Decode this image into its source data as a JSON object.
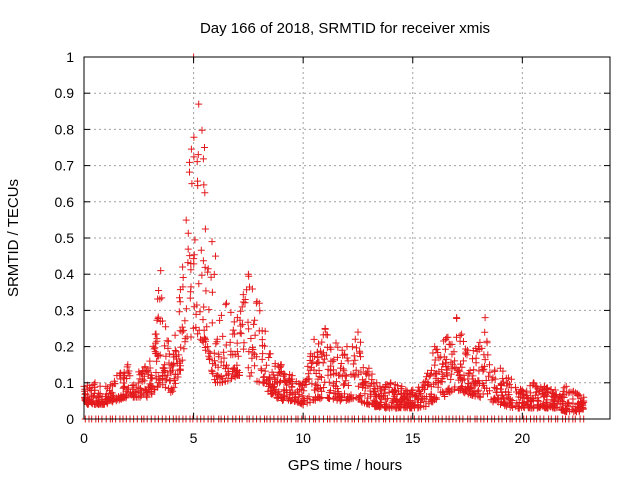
{
  "chart_data": {
    "type": "scatter",
    "title": "Day 166 of 2018, SRMTID for receiver xmis",
    "xlabel": "GPS time / hours",
    "ylabel": "SRMTID / TECUs",
    "xlim": [
      0,
      24
    ],
    "ylim": [
      0,
      1
    ],
    "xticks": [
      0,
      5,
      10,
      15,
      20
    ],
    "xtick_labels": [
      "0",
      "5",
      "10",
      "15",
      "20"
    ],
    "yticks": [
      0,
      0.1,
      0.2,
      0.3,
      0.4,
      0.5,
      0.6,
      0.7,
      0.8,
      0.9,
      1
    ],
    "ytick_labels": [
      "0",
      "0.1",
      "0.2",
      "0.3",
      "0.4",
      "0.5",
      "0.6",
      "0.7",
      "0.8",
      "0.9",
      "1"
    ],
    "grid": true,
    "marker": "+",
    "series": [
      {
        "name": "SRMTID",
        "color": "#e41a1c",
        "envelope": [
          [
            0.0,
            0.04,
            0.09
          ],
          [
            0.5,
            0.04,
            0.1
          ],
          [
            1.0,
            0.04,
            0.09
          ],
          [
            1.5,
            0.05,
            0.12
          ],
          [
            2.0,
            0.06,
            0.15
          ],
          [
            2.5,
            0.06,
            0.13
          ],
          [
            3.0,
            0.06,
            0.16
          ],
          [
            3.5,
            0.1,
            0.41
          ],
          [
            4.0,
            0.07,
            0.15
          ],
          [
            4.5,
            0.15,
            0.42
          ],
          [
            5.0,
            0.25,
            1.0
          ],
          [
            5.5,
            0.2,
            0.75
          ],
          [
            6.0,
            0.1,
            0.45
          ],
          [
            6.5,
            0.1,
            0.32
          ],
          [
            7.0,
            0.12,
            0.28
          ],
          [
            7.5,
            0.12,
            0.4
          ],
          [
            8.0,
            0.1,
            0.32
          ],
          [
            8.5,
            0.07,
            0.18
          ],
          [
            9.0,
            0.05,
            0.15
          ],
          [
            9.5,
            0.05,
            0.12
          ],
          [
            10.0,
            0.04,
            0.1
          ],
          [
            10.5,
            0.05,
            0.22
          ],
          [
            11.0,
            0.06,
            0.25
          ],
          [
            11.5,
            0.05,
            0.21
          ],
          [
            12.0,
            0.05,
            0.2
          ],
          [
            12.5,
            0.05,
            0.24
          ],
          [
            13.0,
            0.04,
            0.14
          ],
          [
            13.5,
            0.03,
            0.09
          ],
          [
            14.0,
            0.03,
            0.1
          ],
          [
            14.5,
            0.03,
            0.09
          ],
          [
            15.0,
            0.03,
            0.08
          ],
          [
            15.5,
            0.03,
            0.1
          ],
          [
            16.0,
            0.05,
            0.2
          ],
          [
            16.5,
            0.06,
            0.22
          ],
          [
            17.0,
            0.08,
            0.28
          ],
          [
            17.5,
            0.07,
            0.19
          ],
          [
            18.0,
            0.06,
            0.2
          ],
          [
            18.3,
            0.06,
            0.28
          ],
          [
            18.5,
            0.05,
            0.15
          ],
          [
            19.0,
            0.04,
            0.14
          ],
          [
            19.5,
            0.03,
            0.11
          ],
          [
            20.0,
            0.03,
            0.08
          ],
          [
            20.5,
            0.03,
            0.1
          ],
          [
            21.0,
            0.03,
            0.09
          ],
          [
            21.5,
            0.03,
            0.08
          ],
          [
            22.0,
            0.02,
            0.09
          ],
          [
            22.5,
            0.02,
            0.07
          ],
          [
            22.8,
            0.02,
            0.06
          ]
        ],
        "zero_band": [
          0.0,
          22.8
        ]
      }
    ]
  }
}
